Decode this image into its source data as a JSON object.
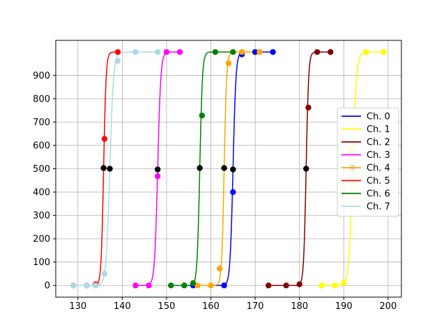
{
  "chart_data": {
    "type": "line",
    "title": "",
    "xlabel": "",
    "ylabel": "",
    "xlim": [
      125,
      203
    ],
    "ylim": [
      -50,
      1050
    ],
    "xticks": [
      130,
      140,
      150,
      160,
      170,
      180,
      190,
      200
    ],
    "yticks": [
      0,
      100,
      200,
      300,
      400,
      500,
      600,
      700,
      800,
      900
    ],
    "grid": true,
    "legend_position": "center-right",
    "midpoint_marker_color": "#000000",
    "series": [
      {
        "name": "Ch. 0",
        "color": "#0000ff",
        "center": 165.0,
        "width": 0.33,
        "xrange": [
          156.0,
          174.0
        ],
        "points": [
          [
            156.0,
            0
          ],
          [
            163.0,
            0
          ],
          [
            165.0,
            400
          ],
          [
            167.0,
            990
          ],
          [
            170.0,
            1000
          ],
          [
            174.0,
            1000
          ]
        ],
        "midpoint": [
          165.0,
          497
        ]
      },
      {
        "name": "Ch. 1",
        "color": "#ffff00",
        "center": 192.0,
        "width": 0.43,
        "xrange": [
          185.0,
          199.0
        ],
        "points": [
          [
            185.0,
            0
          ],
          [
            188.0,
            0
          ],
          [
            190.0,
            12
          ],
          [
            191.5,
            580
          ],
          [
            195.0,
            1000
          ],
          [
            199.0,
            1000
          ]
        ],
        "midpoint": [
          192.0,
          505
        ]
      },
      {
        "name": "Ch. 2",
        "color": "#800000",
        "center": 181.5,
        "width": 0.28,
        "xrange": [
          173.0,
          187.0
        ],
        "points": [
          [
            173.0,
            0
          ],
          [
            177.0,
            0
          ],
          [
            180.0,
            5
          ],
          [
            182.0,
            762
          ],
          [
            184.0,
            1000
          ],
          [
            187.0,
            1000
          ]
        ],
        "midpoint": [
          181.5,
          500
        ]
      },
      {
        "name": "Ch. 3",
        "color": "#ff00ff",
        "center": 148.0,
        "width": 0.35,
        "xrange": [
          143.0,
          153.0
        ],
        "points": [
          [
            143.0,
            0
          ],
          [
            146.0,
            0
          ],
          [
            148.0,
            468
          ],
          [
            150.0,
            1000
          ],
          [
            153.0,
            1000
          ]
        ],
        "midpoint": [
          148.0,
          497
        ]
      },
      {
        "name": "Ch. 4",
        "color": "#ffa500",
        "center": 163.0,
        "width": 0.28,
        "xrange": [
          157.0,
          171.0
        ],
        "points": [
          [
            157.0,
            0
          ],
          [
            160.0,
            0
          ],
          [
            162.0,
            72
          ],
          [
            164.0,
            952
          ],
          [
            167.0,
            1000
          ],
          [
            171.0,
            1000
          ]
        ],
        "midpoint": [
          163.0,
          503
        ]
      },
      {
        "name": "Ch. 5",
        "color": "#ff0000",
        "center": 135.8,
        "width": 0.28,
        "xrange": [
          129.0,
          139.0
        ],
        "points": [
          [
            129.0,
            0
          ],
          [
            132.0,
            0
          ],
          [
            134.0,
            5
          ],
          [
            136.0,
            628
          ],
          [
            139.0,
            1000
          ]
        ],
        "midpoint": [
          135.8,
          503
        ]
      },
      {
        "name": "Ch. 6",
        "color": "#008000",
        "center": 157.5,
        "width": 0.3,
        "xrange": [
          151.0,
          165.0
        ],
        "points": [
          [
            151.0,
            0
          ],
          [
            154.0,
            0
          ],
          [
            156.0,
            10
          ],
          [
            158.0,
            728
          ],
          [
            161.0,
            1000
          ],
          [
            165.0,
            1000
          ]
        ],
        "midpoint": [
          157.5,
          503
        ]
      },
      {
        "name": "Ch. 7",
        "color": "#add8e6",
        "center": 137.2,
        "width": 0.42,
        "xrange": [
          129.0,
          148.0
        ],
        "points": [
          [
            129.0,
            0
          ],
          [
            132.0,
            0
          ],
          [
            134.0,
            0
          ],
          [
            136.0,
            50
          ],
          [
            139.0,
            962
          ],
          [
            143.0,
            1000
          ],
          [
            148.0,
            1000
          ]
        ],
        "midpoint": [
          137.2,
          500
        ]
      }
    ]
  }
}
